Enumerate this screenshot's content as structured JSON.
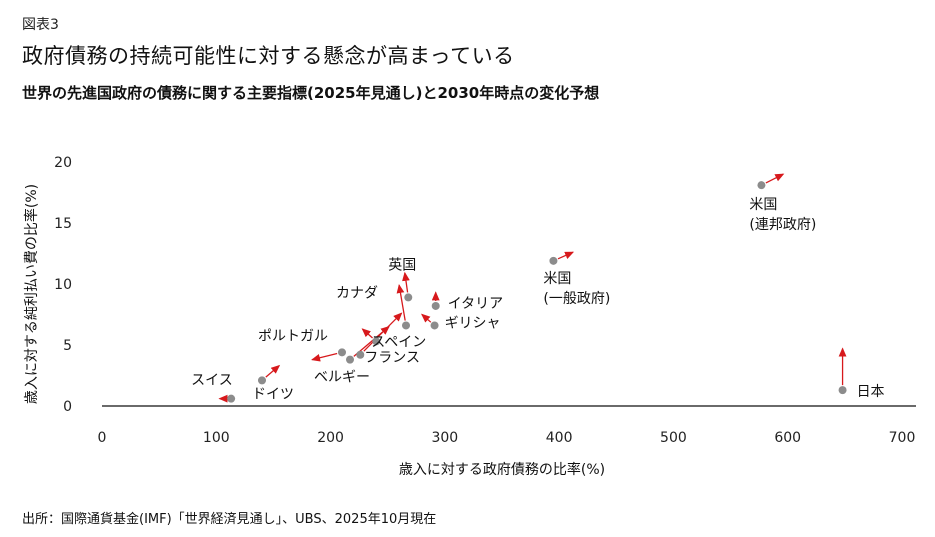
{
  "header": {
    "figure_label": "図表3",
    "title": "政府債務の持続可能性に対する懸念が高まっている",
    "subtitle": "世界の先進国政府の債務に関する主要指標(2025年見通し)と2030年時点の変化予想"
  },
  "footer": {
    "source": "出所：国際通貨基金(IMF)「世界経済見通し」、UBS、2025年10月現在"
  },
  "chart_data": {
    "type": "scatter",
    "title": "",
    "xlabel": "歳入に対する政府債務の比率(%)",
    "ylabel": "歳入に対する純利払い費の比率(%)",
    "xlim": [
      0,
      700
    ],
    "ylim": [
      0,
      20
    ],
    "xticks": [
      0,
      100,
      200,
      300,
      400,
      500,
      600,
      700
    ],
    "yticks": [
      0,
      5,
      10,
      15,
      20
    ],
    "grid": false,
    "point_color": "#8c8c8c",
    "arrow_color": "#d7191c",
    "points": [
      {
        "name": "米国\n(連邦政府)",
        "x": 577,
        "y": 18.1,
        "x2030": 596,
        "y2030": 19.0
      },
      {
        "name": "米国\n(一般政府)",
        "x": 395,
        "y": 11.9,
        "x2030": 412,
        "y2030": 12.6
      },
      {
        "name": "日本",
        "x": 648,
        "y": 1.3,
        "x2030": 648,
        "y2030": 4.7
      },
      {
        "name": "英国",
        "x": 268,
        "y": 8.9,
        "x2030": 265,
        "y2030": 10.9
      },
      {
        "name": "カナダ",
        "x": 266,
        "y": 6.6,
        "x2030": 260,
        "y2030": 9.9
      },
      {
        "name": "イタリア",
        "x": 292,
        "y": 8.2,
        "x2030": 292,
        "y2030": 9.3
      },
      {
        "name": "ギリシャ",
        "x": 291,
        "y": 6.6,
        "x2030": 280,
        "y2030": 7.5
      },
      {
        "name": "スペイン",
        "x": 240,
        "y": 5.3,
        "x2030": 228,
        "y2030": 6.3
      },
      {
        "name": "フランス",
        "x": 226,
        "y": 4.2,
        "x2030": 262,
        "y2030": 7.6
      },
      {
        "name": "ベルギー",
        "x": 217,
        "y": 3.8,
        "x2030": 251,
        "y2030": 6.5
      },
      {
        "name": "ポルトガル",
        "x": 210,
        "y": 4.4,
        "x2030": 184,
        "y2030": 3.8
      },
      {
        "name": "ドイツ",
        "x": 140,
        "y": 2.1,
        "x2030": 155,
        "y2030": 3.3
      },
      {
        "name": "スイス",
        "x": 113,
        "y": 0.6,
        "x2030": 103,
        "y2030": 0.6
      }
    ]
  }
}
